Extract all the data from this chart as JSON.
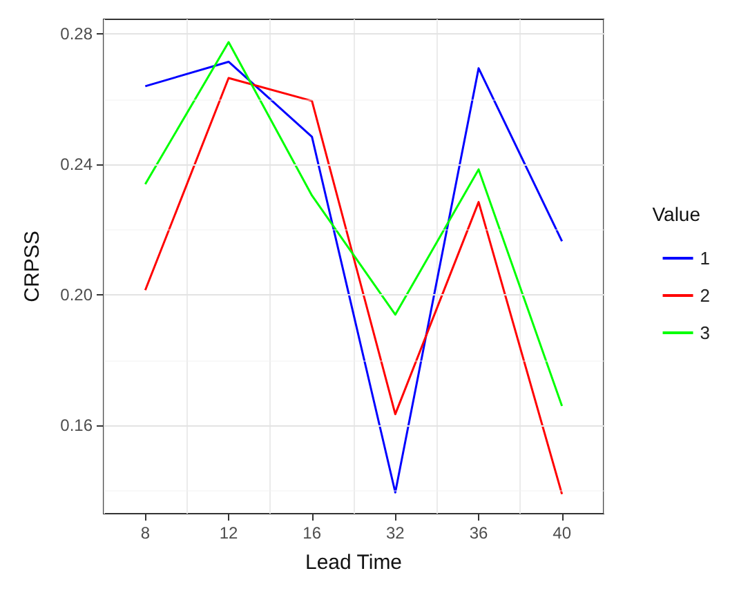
{
  "chart_data": {
    "type": "line",
    "xlabel": "Lead Time",
    "ylabel": "CRPSS",
    "legend_title": "Value",
    "categories": [
      "8",
      "12",
      "16",
      "32",
      "36",
      "40"
    ],
    "series": [
      {
        "name": "1",
        "color": "#0000ff",
        "values": [
          0.264,
          0.2715,
          0.2485,
          0.1395,
          0.2695,
          0.2165
        ]
      },
      {
        "name": "2",
        "color": "#ff0000",
        "values": [
          0.2015,
          0.2665,
          0.2595,
          0.1635,
          0.2285,
          0.139
        ]
      },
      {
        "name": "3",
        "color": "#00ff00",
        "values": [
          0.234,
          0.2775,
          0.2305,
          0.194,
          0.2385,
          0.166
        ]
      }
    ],
    "ylim": [
      0.133,
      0.2845
    ],
    "yticks": [
      0.16,
      {
        "value": 0.2,
        "label": "0.20"
      },
      0.24,
      0.28
    ],
    "grid": true,
    "legend": "right",
    "marker": "none",
    "line_style": "solid"
  }
}
